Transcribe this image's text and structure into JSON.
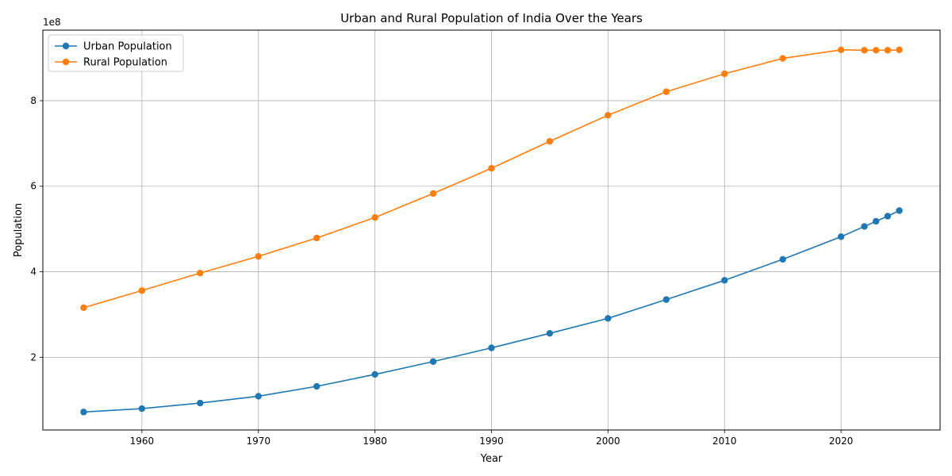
{
  "chart_data": {
    "type": "line",
    "title": "Urban and Rural Population of India Over the Years",
    "xlabel": "Year",
    "ylabel": "Population",
    "y_scale_label": "1e8",
    "x": [
      1955,
      1960,
      1965,
      1970,
      1975,
      1980,
      1985,
      1990,
      1995,
      2000,
      2005,
      2010,
      2015,
      2020,
      2022,
      2023,
      2024,
      2025
    ],
    "series": [
      {
        "name": "Urban Population",
        "color": "#1f77b4",
        "values": [
          72000000,
          80000000,
          93000000,
          109000000,
          132000000,
          160000000,
          190000000,
          222000000,
          256000000,
          291000000,
          335000000,
          380000000,
          429000000,
          482000000,
          506000000,
          518000000,
          530000000,
          543000000
        ]
      },
      {
        "name": "Rural Population",
        "color": "#ff7f0e",
        "values": [
          316000000,
          356000000,
          397000000,
          436000000,
          479000000,
          527000000,
          583000000,
          642000000,
          705000000,
          766000000,
          821000000,
          863000000,
          899000000,
          919000000,
          918000000,
          918000000,
          918000000,
          919000000
        ]
      }
    ],
    "xlim": [
      1951.5,
      2028.5
    ],
    "ylim": [
      30000000,
      965000000
    ],
    "xticks": [
      1960,
      1970,
      1980,
      1990,
      2000,
      2010,
      2020
    ],
    "yticks": [
      200000000,
      400000000,
      600000000,
      800000000
    ],
    "ytick_labels": [
      "2",
      "4",
      "6",
      "8"
    ],
    "grid": true,
    "legend_position": "upper-left"
  }
}
